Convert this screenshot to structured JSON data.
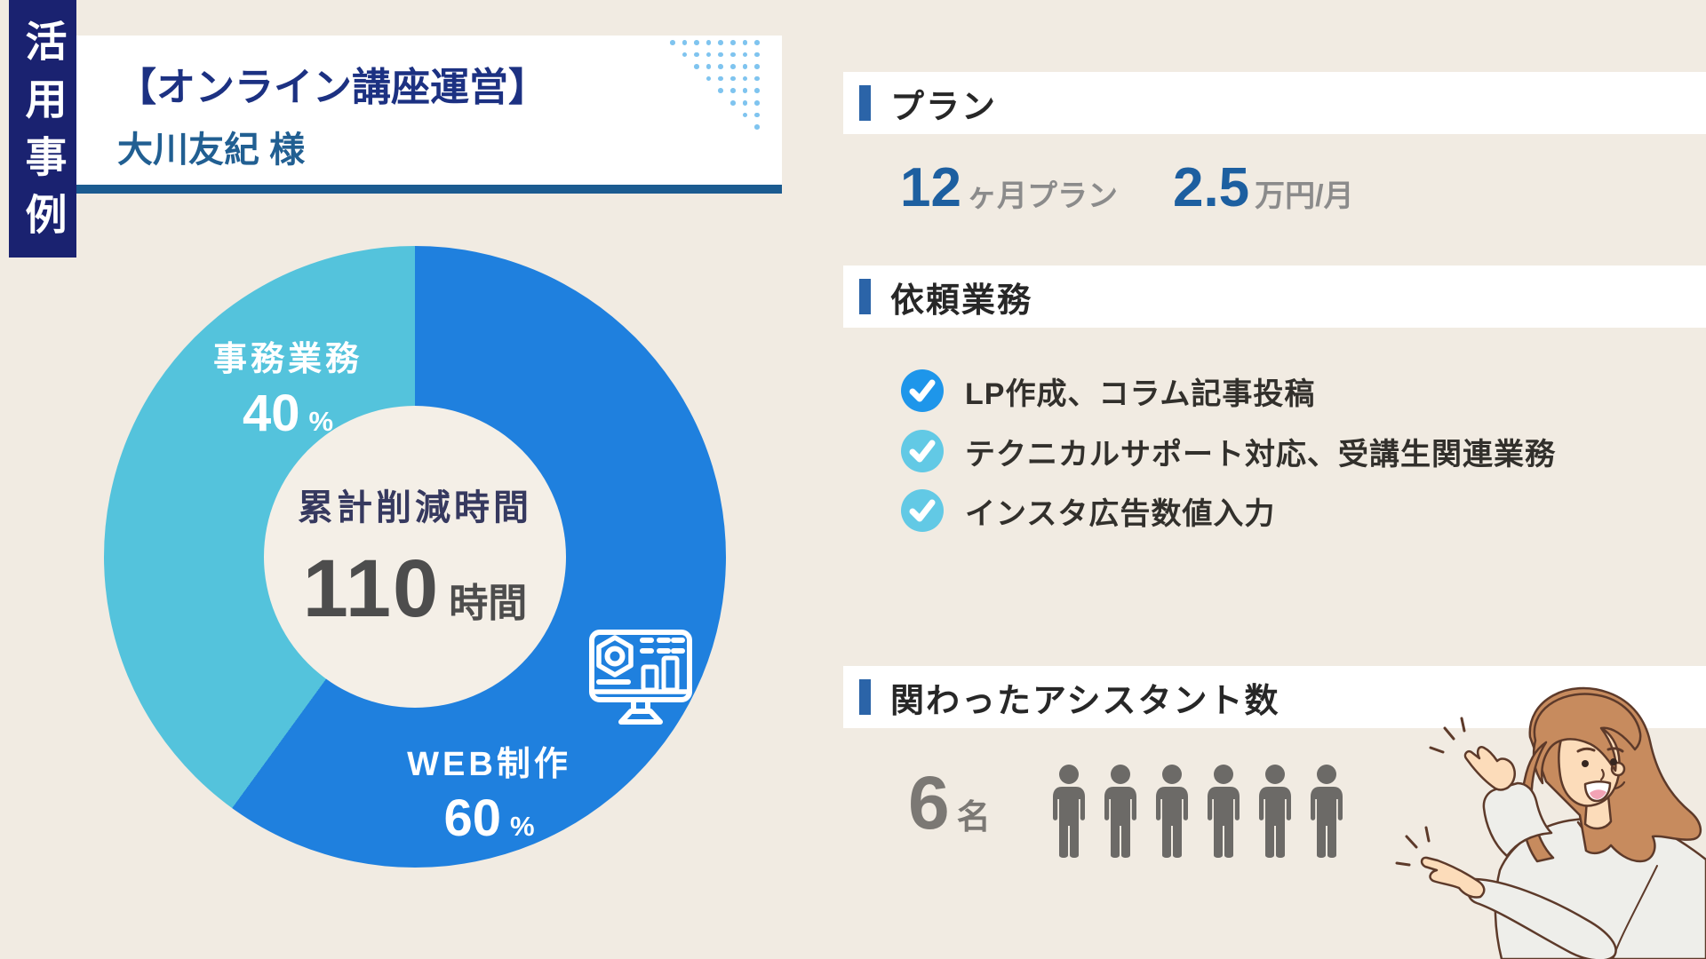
{
  "side_tab": {
    "label": "活用事例",
    "bg_color": "#1A2270"
  },
  "header": {
    "category": "【オンライン講座運営】",
    "client_name": "大川友紀 様",
    "underline_color": "#1B5B90"
  },
  "chart_data": {
    "type": "pie",
    "style": "donut",
    "direction": "clockwise",
    "start_angle_deg": 0,
    "center_label": "累計削減時間",
    "center_value": "110",
    "center_unit": "時間",
    "unit": "%",
    "series": [
      {
        "label": "WEB制作",
        "value": 60,
        "color": "#1F80DE"
      },
      {
        "label": "事務業務",
        "value": 40,
        "color": "#54C3DC"
      }
    ],
    "legend_position": "on-slices"
  },
  "plan": {
    "title": "プラン",
    "duration_value": "12",
    "duration_unit": "ヶ月プラン",
    "price_value": "2.5",
    "price_unit": "万円/月",
    "number_color": "#1D5FA0"
  },
  "tasks": {
    "title": "依頼業務",
    "items": [
      {
        "label": "LP作成、コラム記事投稿",
        "check_color": "#1E96EA"
      },
      {
        "label": "テクニカルサポート対応、受講生関連業務",
        "check_color": "#62C9E5"
      },
      {
        "label": "インスタ広告数値入力",
        "check_color": "#62C9E5"
      }
    ]
  },
  "assistants": {
    "title": "関わったアシスタント数",
    "count": "6",
    "count_unit": "名",
    "icon_count": 6,
    "icon_color": "#6C6A67"
  }
}
